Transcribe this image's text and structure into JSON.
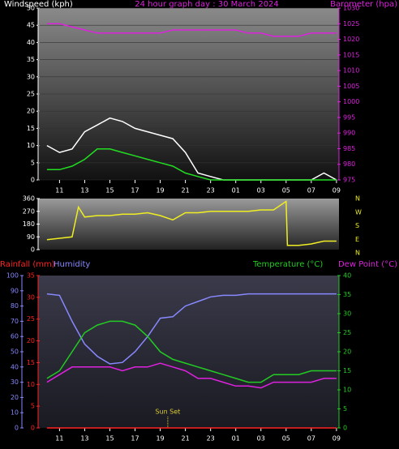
{
  "chart_data": [
    {
      "type": "line",
      "title": "24 hour graph day : 30 March 2024",
      "x": [
        1,
        2,
        3,
        4,
        5,
        6,
        7,
        8,
        9,
        10,
        11,
        12,
        13,
        14,
        15,
        16,
        17,
        18,
        19,
        20,
        21,
        22,
        23,
        24
      ],
      "xlim": [
        0.3,
        24.2
      ],
      "xticks": [
        {
          "value": 2,
          "label": "11"
        },
        {
          "value": 4,
          "label": "13"
        },
        {
          "value": 6,
          "label": "15"
        },
        {
          "value": 8,
          "label": "17"
        },
        {
          "value": 10,
          "label": "19"
        },
        {
          "value": 12,
          "label": "21"
        },
        {
          "value": 14,
          "label": "23"
        },
        {
          "value": 16,
          "label": "01"
        },
        {
          "value": 18,
          "label": "03"
        },
        {
          "value": 20,
          "label": "05"
        },
        {
          "value": 22,
          "label": "07"
        },
        {
          "value": 24,
          "label": "09"
        }
      ],
      "ylim": [
        0,
        50
      ],
      "yticks": [
        0,
        5,
        10,
        15,
        20,
        25,
        30,
        35,
        40,
        45,
        50
      ],
      "y2lim": [
        975,
        1030
      ],
      "y2ticks": [
        975,
        980,
        985,
        990,
        995,
        1000,
        1005,
        1010,
        1015,
        1020,
        1025,
        1030
      ],
      "grid": true,
      "series": [
        {
          "name": "Windspeed (kph)",
          "color": "#ffffff",
          "values": [
            10,
            8,
            9,
            14,
            16,
            18,
            17,
            15,
            14,
            13,
            12,
            8,
            2,
            1,
            0,
            0,
            0,
            0,
            0,
            0,
            0,
            0,
            2,
            0
          ]
        },
        {
          "color": "#22dd22",
          "values": [
            3,
            3,
            4,
            6,
            9,
            9,
            8,
            7,
            6,
            5,
            4,
            2,
            1,
            0,
            0,
            0,
            0,
            0,
            0,
            0,
            0,
            0,
            0,
            0
          ]
        },
        {
          "name": "Barometer (hpa)",
          "axis": "y2",
          "color": "#dd22dd",
          "values": [
            1025,
            1025,
            1024,
            1023,
            1022,
            1022,
            1022,
            1022,
            1022,
            1022,
            1023,
            1023,
            1023,
            1023,
            1023,
            1023,
            1022,
            1022,
            1021,
            1021,
            1021,
            1022,
            1022,
            1022
          ]
        }
      ]
    },
    {
      "type": "line",
      "x": [
        1,
        2,
        3,
        3.5,
        4,
        5,
        6,
        7,
        8,
        9,
        10,
        11,
        12,
        13,
        14,
        15,
        16,
        17,
        18,
        19,
        20,
        20.1,
        21,
        22,
        23,
        24
      ],
      "xlim": [
        0.3,
        24.2
      ],
      "ylim": [
        0,
        360
      ],
      "yticks": [
        0,
        90,
        180,
        270,
        360
      ],
      "compass": [
        "N",
        "W",
        "S",
        "E",
        "N"
      ],
      "series": [
        {
          "color": "#eeee22",
          "values": [
            70,
            80,
            90,
            300,
            230,
            240,
            240,
            250,
            250,
            260,
            240,
            210,
            260,
            260,
            270,
            270,
            270,
            270,
            280,
            280,
            340,
            30,
            30,
            40,
            60,
            60
          ]
        }
      ]
    },
    {
      "type": "line",
      "x": [
        1,
        2,
        3,
        4,
        5,
        6,
        7,
        8,
        9,
        10,
        11,
        12,
        13,
        14,
        15,
        16,
        17,
        18,
        19,
        20,
        21,
        22,
        23,
        24
      ],
      "xlim": [
        0.3,
        24.2
      ],
      "xticks": [
        {
          "value": 2,
          "label": "11"
        },
        {
          "value": 4,
          "label": "13"
        },
        {
          "value": 6,
          "label": "15"
        },
        {
          "value": 8,
          "label": "17"
        },
        {
          "value": 10,
          "label": "19"
        },
        {
          "value": 12,
          "label": "21"
        },
        {
          "value": 14,
          "label": "23"
        },
        {
          "value": 16,
          "label": "01"
        },
        {
          "value": 18,
          "label": "03"
        },
        {
          "value": 20,
          "label": "05"
        },
        {
          "value": 22,
          "label": "07"
        },
        {
          "value": 24,
          "label": "09"
        }
      ],
      "ylim": [
        0,
        35
      ],
      "yticks": [
        0,
        5,
        10,
        15,
        20,
        25,
        30,
        35
      ],
      "y2lim": [
        0,
        40
      ],
      "y2ticks": [
        0,
        5,
        10,
        15,
        20,
        25,
        30,
        35,
        40
      ],
      "y3lim": [
        0,
        100
      ],
      "y3ticks": [
        0,
        10,
        20,
        30,
        40,
        50,
        60,
        70,
        80,
        90,
        100
      ],
      "annotations": [
        {
          "x": 10.6,
          "text": "Sun Set"
        }
      ],
      "series": [
        {
          "name": "Rainfall (mm)",
          "color": "#ff2222",
          "values": [
            0,
            0,
            0,
            0,
            0,
            0,
            0,
            0,
            0,
            0,
            0,
            0,
            0,
            0,
            0,
            0,
            0,
            0,
            0,
            0,
            0,
            0,
            0,
            0
          ]
        },
        {
          "name": "Humidity",
          "axis": "y3",
          "color": "#8888ff",
          "values": [
            88,
            87,
            70,
            55,
            47,
            42,
            43,
            50,
            60,
            72,
            73,
            80,
            83,
            86,
            87,
            87,
            88,
            88,
            88,
            88,
            88,
            88,
            88,
            88
          ]
        },
        {
          "name": "Temperature (°C)",
          "axis": "y2",
          "color": "#22cc22",
          "values": [
            13,
            15,
            20,
            25,
            27,
            28,
            28,
            27,
            24,
            20,
            18,
            17,
            16,
            15,
            14,
            13,
            12,
            12,
            14,
            14,
            14,
            15,
            15,
            15
          ]
        },
        {
          "name": "Dew Point (°C)",
          "axis": "y2",
          "color": "#dd22dd",
          "values": [
            12,
            14,
            16,
            16,
            16,
            16,
            15,
            16,
            16,
            17,
            16,
            15,
            13,
            13,
            12,
            11,
            11,
            10.5,
            12,
            12,
            12,
            12,
            13,
            13
          ]
        }
      ]
    }
  ]
}
